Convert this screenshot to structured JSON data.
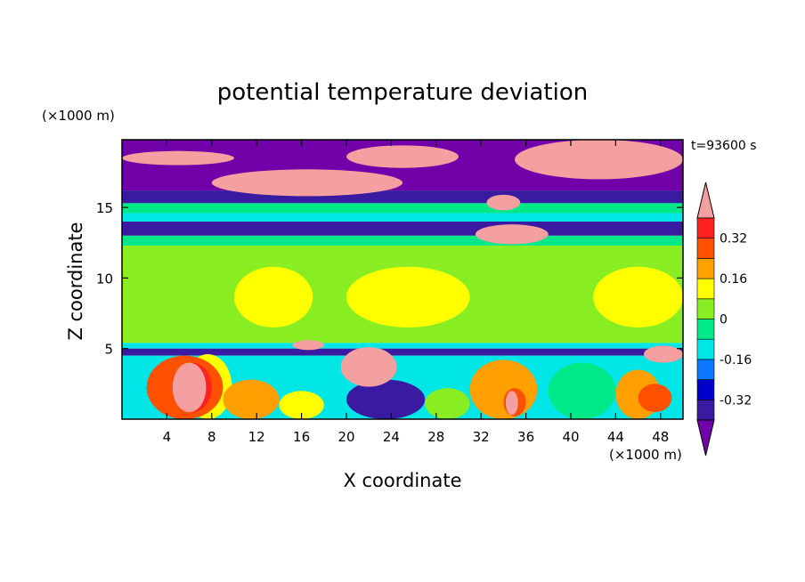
{
  "chart_data": {
    "type": "heatmap",
    "title": "potential temperature deviation",
    "xlabel": "X coordinate",
    "ylabel": "Z coordinate",
    "x_unit": "(×1000 m)",
    "y_unit": "(×1000 m)",
    "time_label": "t=93600 s",
    "xlim": [
      0,
      50
    ],
    "ylim": [
      0,
      19.8
    ],
    "x_ticks": [
      4,
      8,
      12,
      16,
      20,
      24,
      28,
      32,
      36,
      40,
      44,
      48
    ],
    "y_ticks": [
      5,
      10,
      15
    ],
    "colorbar": {
      "labels": [
        "0.32",
        "0.16",
        "0",
        "-0.16",
        "-0.32"
      ],
      "label_values": [
        0.32,
        0.16,
        0,
        -0.16,
        -0.32
      ],
      "levels": [
        -0.4,
        -0.32,
        -0.24,
        -0.16,
        -0.08,
        0,
        0.08,
        0.16,
        0.24,
        0.32,
        0.4
      ],
      "colors": [
        "#7000a8",
        "#3a1aa0",
        "#0000c8",
        "#0a78ff",
        "#00e6e6",
        "#00e888",
        "#88ee22",
        "#ffff00",
        "#ffa000",
        "#ff5000",
        "#ff2020",
        "#f5a0a0"
      ],
      "extend": "both"
    },
    "regions": [
      {
        "x": [
          0,
          50
        ],
        "z": [
          16.2,
          19.8
        ],
        "value": -0.45
      },
      {
        "x": [
          0,
          50
        ],
        "z": [
          15.3,
          16.2
        ],
        "value": -0.36
      },
      {
        "x": [
          0,
          50
        ],
        "z": [
          14.6,
          15.3
        ],
        "value": -0.06
      },
      {
        "x": [
          0,
          50
        ],
        "z": [
          14.0,
          14.6
        ],
        "value": -0.12
      },
      {
        "x": [
          0,
          50
        ],
        "z": [
          13.0,
          14.0
        ],
        "value": -0.33
      },
      {
        "x": [
          0,
          50
        ],
        "z": [
          12.3,
          13.0
        ],
        "value": -0.05
      },
      {
        "x": [
          0,
          50
        ],
        "z": [
          11.0,
          12.3
        ],
        "value": 0.04
      },
      {
        "x": [
          0,
          50
        ],
        "z": [
          5.4,
          11.0
        ],
        "value": 0.05
      },
      {
        "x": [
          0,
          50
        ],
        "z": [
          5.0,
          5.4
        ],
        "value": -0.1
      },
      {
        "x": [
          0,
          50
        ],
        "z": [
          4.5,
          5.0
        ],
        "value": -0.38
      },
      {
        "x": [
          0,
          50
        ],
        "z": [
          0,
          4.5
        ],
        "value": -0.1
      },
      {
        "x": [
          5.5,
          9.8
        ],
        "z": [
          0,
          4.6
        ],
        "value": 0.08
      },
      {
        "x": [
          2.2,
          9
        ],
        "z": [
          0,
          4.5
        ],
        "value": 0.24
      },
      {
        "x": [
          4.5,
          8
        ],
        "z": [
          0.5,
          4.0
        ],
        "value": 0.36
      },
      {
        "x": [
          9,
          14
        ],
        "z": [
          0,
          2.8
        ],
        "value": 0.2
      },
      {
        "x": [
          14,
          18
        ],
        "z": [
          0,
          2.0
        ],
        "value": 0.08
      },
      {
        "x": [
          20,
          27
        ],
        "z": [
          0,
          2.8
        ],
        "value": -0.36
      },
      {
        "x": [
          27,
          31
        ],
        "z": [
          0,
          2.2
        ],
        "value": 0.0
      },
      {
        "x": [
          31,
          37
        ],
        "z": [
          0,
          4.2
        ],
        "value": 0.16
      },
      {
        "x": [
          34,
          36
        ],
        "z": [
          0.2,
          2.2
        ],
        "value": 0.3
      },
      {
        "x": [
          38,
          44
        ],
        "z": [
          0,
          4.0
        ],
        "value": -0.05
      },
      {
        "x": [
          44,
          48
        ],
        "z": [
          0,
          3.5
        ],
        "value": 0.16
      },
      {
        "x": [
          46,
          49
        ],
        "z": [
          0.5,
          2.5
        ],
        "value": 0.3
      },
      {
        "x": [
          10,
          17
        ],
        "z": [
          6.5,
          10.8
        ],
        "value": 0.1
      },
      {
        "x": [
          20,
          31
        ],
        "z": [
          6.5,
          10.8
        ],
        "value": 0.1
      },
      {
        "x": [
          42,
          50
        ],
        "z": [
          6.5,
          10.8
        ],
        "value": 0.1
      },
      {
        "x": [
          0,
          10
        ],
        "z": [
          18.0,
          19.0
        ],
        "value": 0.45
      },
      {
        "x": [
          8,
          25
        ],
        "z": [
          15.8,
          17.7
        ],
        "value": 0.45
      },
      {
        "x": [
          20,
          30
        ],
        "z": [
          17.8,
          19.4
        ],
        "value": 0.45
      },
      {
        "x": [
          35,
          50
        ],
        "z": [
          17.0,
          19.8
        ],
        "value": 0.45
      },
      {
        "x": [
          31.5,
          38
        ],
        "z": [
          12.4,
          13.8
        ],
        "value": 0.45
      },
      {
        "x": [
          32.5,
          35.5
        ],
        "z": [
          14.8,
          15.9
        ],
        "value": 0.45
      },
      {
        "x": [
          19.5,
          24.5
        ],
        "z": [
          2.3,
          5.1
        ],
        "value": 0.45
      },
      {
        "x": [
          15.2,
          18.0
        ],
        "z": [
          4.9,
          5.6
        ],
        "value": 0.45
      },
      {
        "x": [
          46.5,
          50
        ],
        "z": [
          4.0,
          5.2
        ],
        "value": 0.45
      },
      {
        "x": [
          4.5,
          7.5
        ],
        "z": [
          0.5,
          4.0
        ],
        "value": 0.45
      },
      {
        "x": [
          34.2,
          35.3
        ],
        "z": [
          0.3,
          2.0
        ],
        "value": 0.45
      }
    ]
  }
}
